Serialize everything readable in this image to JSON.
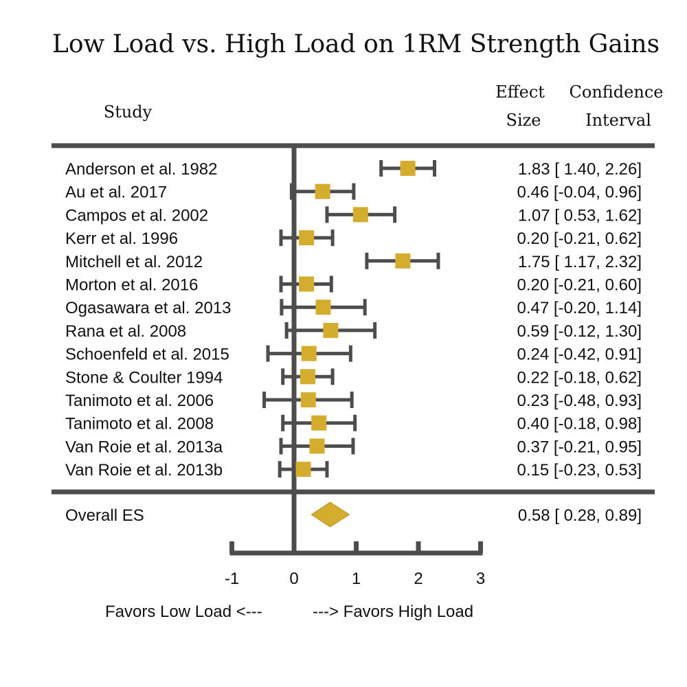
{
  "chart_data": {
    "type": "forest",
    "title": "Low Load vs. High Load on 1RM Strength Gains",
    "headers": {
      "study": "Study",
      "effect_size_line1": "Effect",
      "effect_size_line2": "Size",
      "ci_line1": "Confidence",
      "ci_line2": "Interval"
    },
    "studies": [
      {
        "label": "Anderson et al. 1982",
        "es": 1.83,
        "lower": 1.4,
        "upper": 2.26,
        "text": "1.83 [ 1.40, 2.26]"
      },
      {
        "label": "Au et al. 2017",
        "es": 0.46,
        "lower": -0.04,
        "upper": 0.96,
        "text": "0.46 [-0.04, 0.96]"
      },
      {
        "label": "Campos et al. 2002",
        "es": 1.07,
        "lower": 0.53,
        "upper": 1.62,
        "text": "1.07 [ 0.53, 1.62]"
      },
      {
        "label": "Kerr et al. 1996",
        "es": 0.2,
        "lower": -0.21,
        "upper": 0.62,
        "text": "0.20 [-0.21, 0.62]"
      },
      {
        "label": "Mitchell et al. 2012",
        "es": 1.75,
        "lower": 1.17,
        "upper": 2.32,
        "text": "1.75 [ 1.17, 2.32]"
      },
      {
        "label": "Morton et al. 2016",
        "es": 0.2,
        "lower": -0.21,
        "upper": 0.6,
        "text": "0.20 [-0.21, 0.60]"
      },
      {
        "label": "Ogasawara et al. 2013",
        "es": 0.47,
        "lower": -0.2,
        "upper": 1.14,
        "text": "0.47 [-0.20, 1.14]"
      },
      {
        "label": "Rana et al. 2008",
        "es": 0.59,
        "lower": -0.12,
        "upper": 1.3,
        "text": "0.59 [-0.12, 1.30]"
      },
      {
        "label": "Schoenfeld et al. 2015",
        "es": 0.24,
        "lower": -0.42,
        "upper": 0.91,
        "text": "0.24 [-0.42, 0.91]"
      },
      {
        "label": "Stone & Coulter 1994",
        "es": 0.22,
        "lower": -0.18,
        "upper": 0.62,
        "text": "0.22 [-0.18, 0.62]"
      },
      {
        "label": "Tanimoto et al. 2006",
        "es": 0.23,
        "lower": -0.48,
        "upper": 0.93,
        "text": "0.23 [-0.48, 0.93]"
      },
      {
        "label": "Tanimoto et al. 2008",
        "es": 0.4,
        "lower": -0.18,
        "upper": 0.98,
        "text": "0.40 [-0.18, 0.98]"
      },
      {
        "label": "Van Roie et al. 2013a",
        "es": 0.37,
        "lower": -0.21,
        "upper": 0.95,
        "text": "0.37 [-0.21, 0.95]"
      },
      {
        "label": "Van Roie et al. 2013b",
        "es": 0.15,
        "lower": -0.23,
        "upper": 0.53,
        "text": "0.15 [-0.23, 0.53]"
      }
    ],
    "overall": {
      "label": "Overall ES",
      "es": 0.58,
      "lower": 0.28,
      "upper": 0.89,
      "text": "0.58 [ 0.28, 0.89]"
    },
    "x_ticks": [
      -1,
      0,
      1,
      2,
      3
    ],
    "xlim": [
      -1,
      3
    ],
    "favors_left": "Favors Low Load <---",
    "favors_right": "---> Favors High Load",
    "colors": {
      "marker": "#d4ac2e",
      "line": "#4d4d4d",
      "text": "#111111"
    }
  }
}
